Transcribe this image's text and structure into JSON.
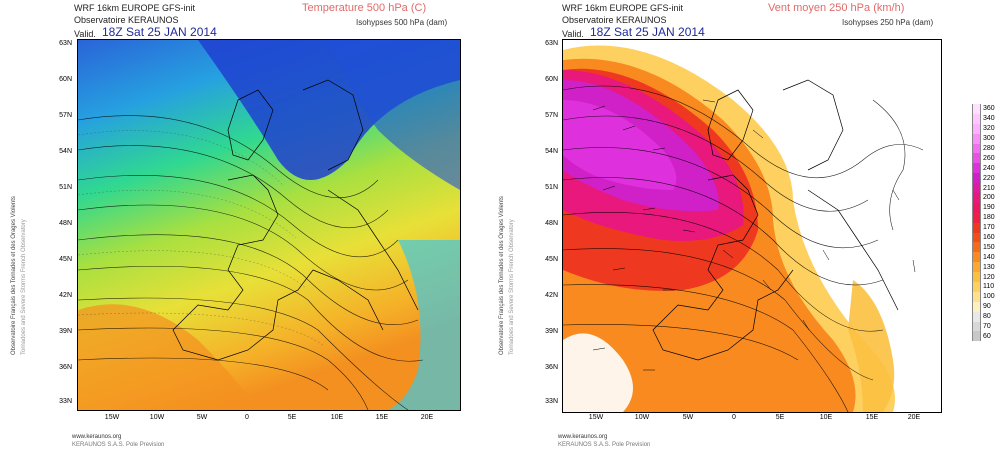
{
  "left": {
    "model": "WRF 16km EUROPE  GFS-init",
    "org": "Observatoire KERAUNOS",
    "valid_prefix": "Valid.",
    "valid": "18Z Sat 25 JAN 2014",
    "title": "Temperature 500 hPa (C)",
    "subtitle": "Isohypses 500 hPa (dam)",
    "side1": "Observatoire Français des Tornades et des Orages Violents",
    "side2": "Tornadoes and Severe Storms French Observatory",
    "foot1": "www.keraunos.org",
    "foot2": "KERAUNOS S.A.S. Pole Prevision"
  },
  "right": {
    "model": "WRF 16km EUROPE  GFS-init",
    "org": "Observatoire KERAUNOS",
    "valid_prefix": "Valid.",
    "valid": "18Z Sat 25 JAN 2014",
    "title": "Vent moyen 250 hPa (km/h)",
    "subtitle": "Isohypses 250 hPa (dam)",
    "side1": "Observatoire Français des Tornades et des Orages Violents",
    "side2": "Tornadoes and Severe Storms French Observatory",
    "foot1": "www.keraunos.org",
    "foot2": "KERAUNOS S.A.S. Pole Prevision"
  },
  "lat_labels": [
    "63N",
    "60N",
    "57N",
    "54N",
    "51N",
    "48N",
    "45N",
    "42N",
    "39N",
    "36N",
    "33N"
  ],
  "lon_labels": [
    "15W",
    "10W",
    "5W",
    "0",
    "5E",
    "10E",
    "15E",
    "20E"
  ],
  "wind_legend": [
    "360",
    "340",
    "320",
    "300",
    "280",
    "260",
    "240",
    "220",
    "210",
    "200",
    "190",
    "180",
    "170",
    "160",
    "150",
    "140",
    "130",
    "120",
    "110",
    "100",
    "90",
    "80",
    "70",
    "60"
  ],
  "wind_colors": [
    "#ffe0ff",
    "#ffc8ff",
    "#ffb0ff",
    "#f990f7",
    "#f070ef",
    "#e850e6",
    "#df30dd",
    "#d020c8",
    "#e01c9c",
    "#e8187c",
    "#ee1860",
    "#f02040",
    "#ef3820",
    "#f05018",
    "#f46a18",
    "#f88a20",
    "#fba830",
    "#fcc040",
    "#fed060",
    "#ffe090",
    "#fff0c0",
    "#e8e8e8",
    "#d8d8d8",
    "#c8c8c8"
  ],
  "temp_colors": {
    "cold": "#1f3fd0",
    "cool": "#2aa0e0",
    "mild": "#40e080",
    "warm": "#d8e040",
    "hot": "#f5a020"
  }
}
